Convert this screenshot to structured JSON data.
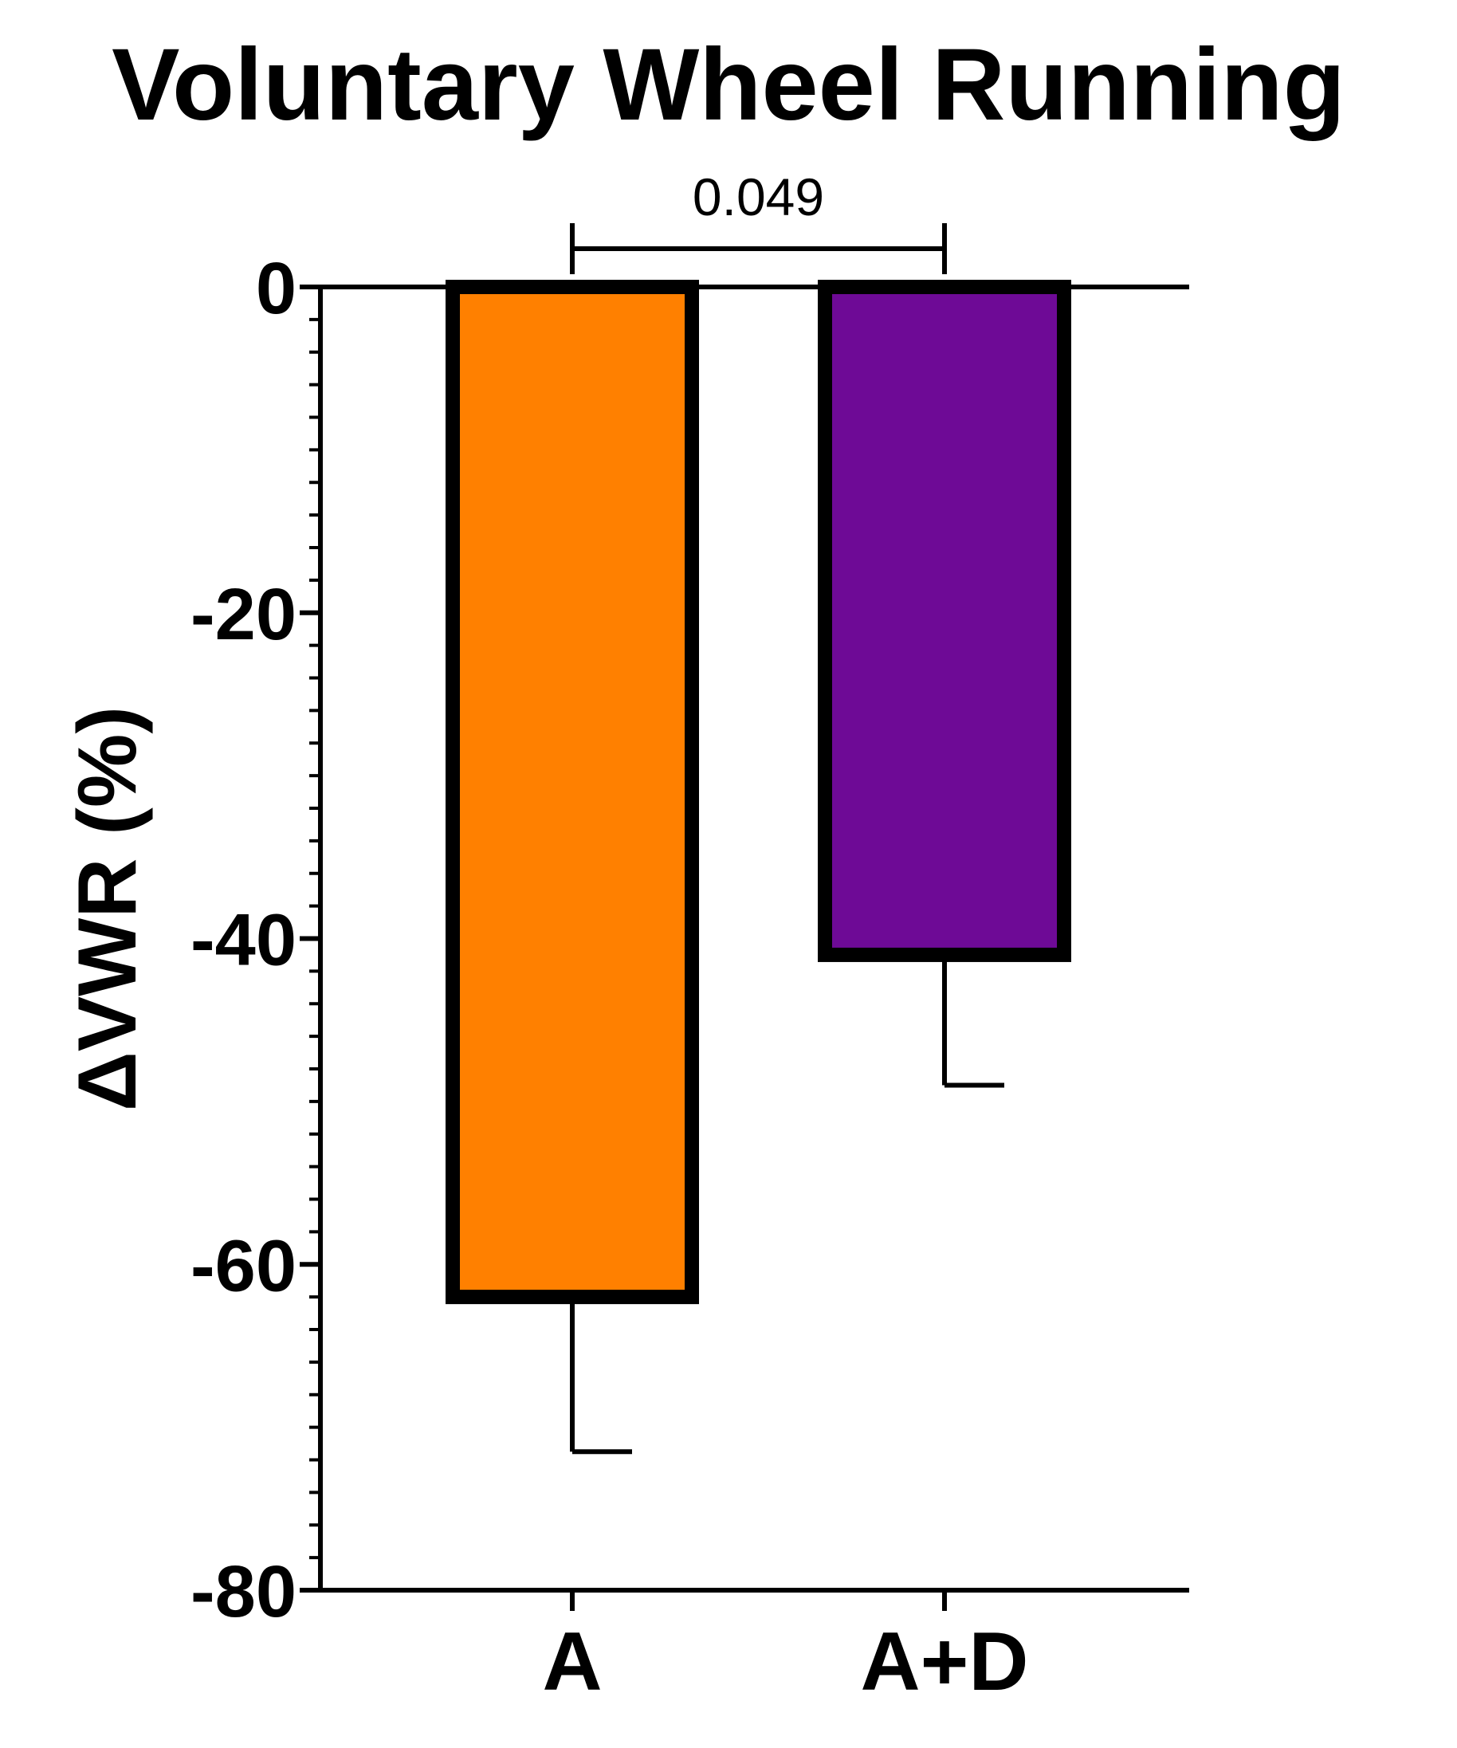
{
  "chart_data": {
    "type": "bar",
    "title": "Voluntary Wheel Running",
    "xlabel": "",
    "ylabel": "ΔVWR (%)",
    "categories": [
      "A",
      "A+D"
    ],
    "values": [
      -62,
      -41
    ],
    "errors": [
      9.5,
      8
    ],
    "colors": [
      "#FF8000",
      "#6E0A96"
    ],
    "ylim": [
      -80,
      0
    ],
    "yticks": [
      0,
      -20,
      -40,
      -60,
      -80
    ],
    "ytick_labels": [
      "0",
      "-20",
      "-40",
      "-60",
      "-80"
    ],
    "grid": false,
    "legend": "none",
    "annotations": [
      {
        "text": "0.049",
        "between": [
          "A",
          "A+D"
        ]
      }
    ]
  }
}
